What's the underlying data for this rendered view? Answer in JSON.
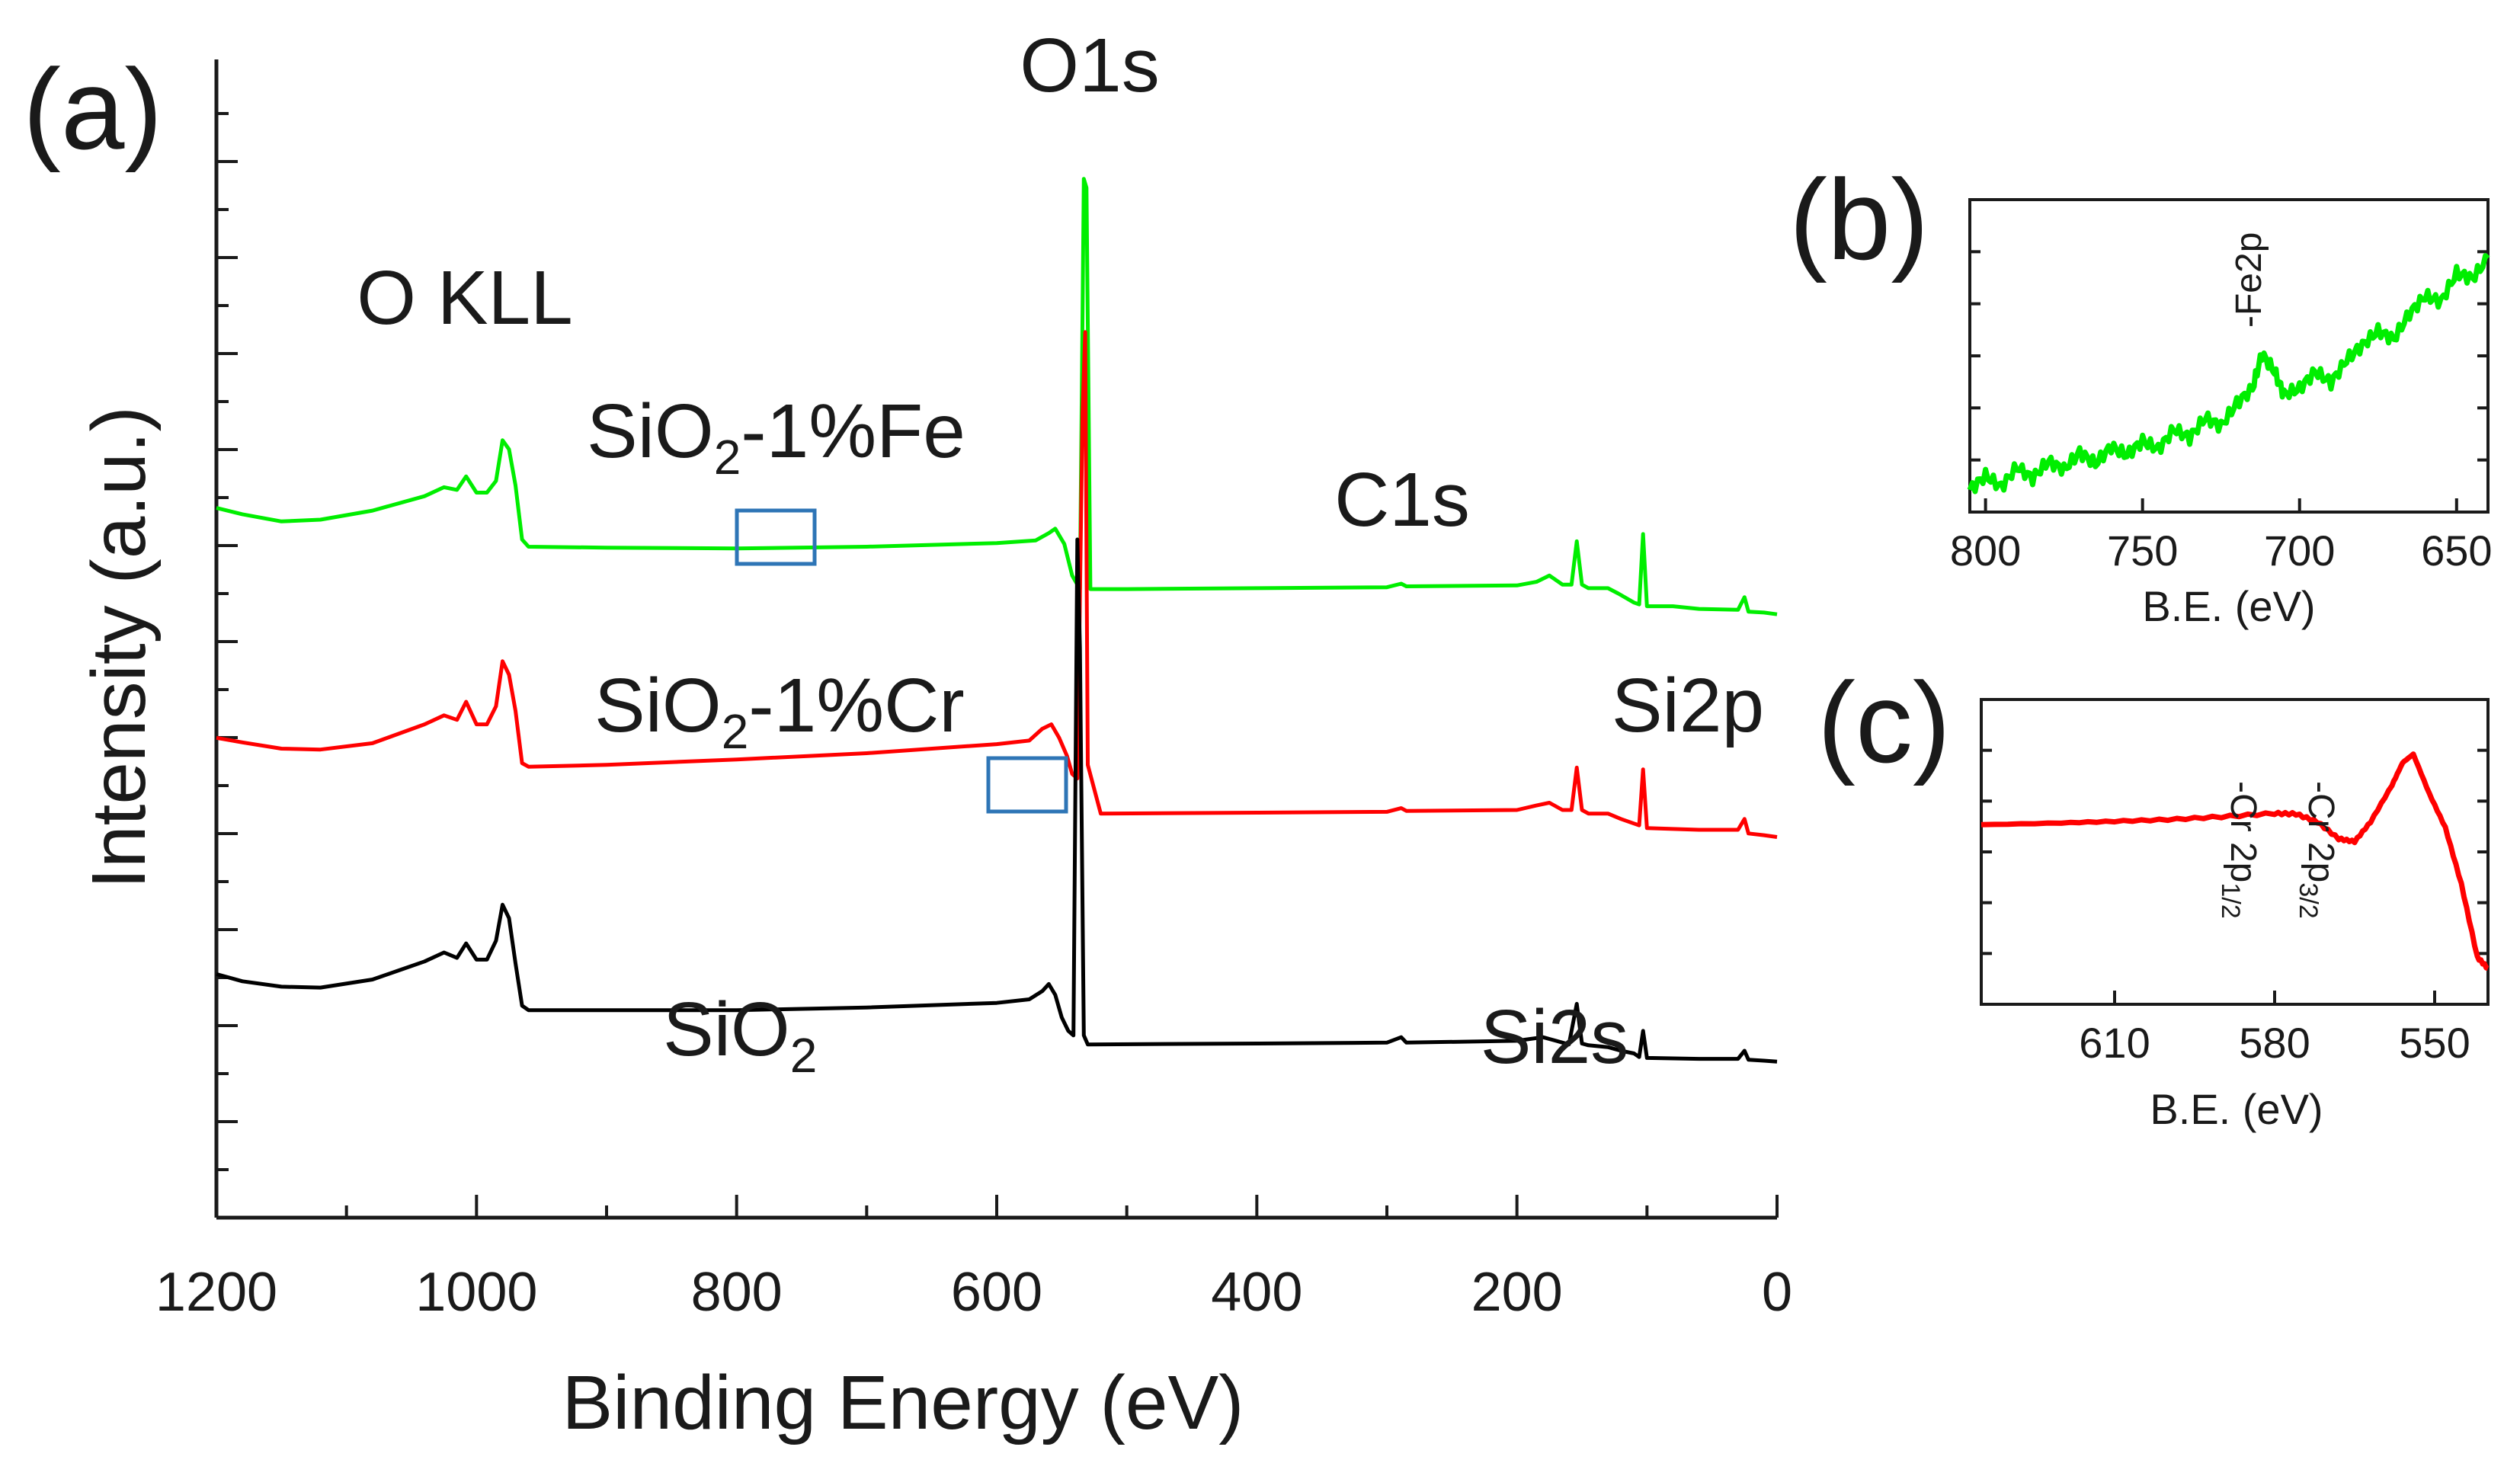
{
  "figure": {
    "panel_a_label": "(a)",
    "panel_b_label": "(b)",
    "panel_c_label": "(c)"
  },
  "chart_data": [
    {
      "id": "a",
      "type": "line",
      "title": "",
      "xlabel": "Binding Energy (eV)",
      "ylabel": "Intensity (a.u.)",
      "xlim": [
        1200,
        0
      ],
      "xticks": [
        "1200",
        "1000",
        "800",
        "600",
        "400",
        "200",
        "0"
      ],
      "ylim": [
        0,
        120
      ],
      "grid": false,
      "colors": {
        "SiO2-1%Fe": "#00ee00",
        "SiO2-1%Cr": "#ff0000",
        "SiO2": "#000000"
      },
      "peak_labels": [
        {
          "text": "O1s",
          "x": 530
        },
        {
          "text": "O KLL",
          "x": 1000
        },
        {
          "text": "C1s",
          "x": 285
        },
        {
          "text": "Si2p",
          "x": 103
        },
        {
          "text": "Si2s",
          "x": 154
        }
      ],
      "series_labels": {
        "fe": {
          "prefix": "SiO",
          "sub": "2",
          "suffix": "-1%Fe"
        },
        "cr": {
          "prefix": "SiO",
          "sub": "2",
          "suffix": "-1%Cr"
        },
        "si": {
          "prefix": "SiO",
          "sub": "2",
          "suffix": ""
        }
      },
      "highlight_boxes": [
        {
          "series": "SiO2-1%Fe",
          "x_range": [
            800,
            725
          ]
        },
        {
          "series": "SiO2-1%Cr",
          "x_range": [
            600,
            525
          ]
        }
      ],
      "series": [
        {
          "name": "SiO2-1%Fe",
          "color": "#00ee00",
          "points": [
            [
              1200,
              75.5
            ],
            [
              1180,
              74.8
            ],
            [
              1150,
              74
            ],
            [
              1120,
              74.2
            ],
            [
              1080,
              75.2
            ],
            [
              1040,
              76.8
            ],
            [
              1025,
              77.8
            ],
            [
              1015,
              77.5
            ],
            [
              1008,
              79
            ],
            [
              1000,
              77.2
            ],
            [
              992,
              77.2
            ],
            [
              985,
              78.5
            ],
            [
              980,
              83
            ],
            [
              975,
              82
            ],
            [
              970,
              78
            ],
            [
              965,
              72
            ],
            [
              960,
              71.2
            ],
            [
              900,
              71.1
            ],
            [
              800,
              71
            ],
            [
              700,
              71.2
            ],
            [
              600,
              71.6
            ],
            [
              570,
              71.9
            ],
            [
              560,
              72.7
            ],
            [
              555,
              73.2
            ],
            [
              548,
              71.5
            ],
            [
              542,
              68
            ],
            [
              536,
              66.5
            ],
            [
              533,
              112
            ],
            [
              531,
              111
            ],
            [
              528,
              66.5
            ],
            [
              500,
              66.5
            ],
            [
              400,
              66.6
            ],
            [
              300,
              66.7
            ],
            [
              289,
              67.1
            ],
            [
              285,
              66.8
            ],
            [
              200,
              66.9
            ],
            [
              185,
              67.3
            ],
            [
              175,
              68
            ],
            [
              165,
              67
            ],
            [
              158,
              67
            ],
            [
              154,
              71.8
            ],
            [
              150,
              67
            ],
            [
              145,
              66.6
            ],
            [
              130,
              66.6
            ],
            [
              122,
              66
            ],
            [
              110,
              65
            ],
            [
              106,
              64.8
            ],
            [
              103,
              72.6
            ],
            [
              100,
              64.6
            ],
            [
              80,
              64.6
            ],
            [
              60,
              64.3
            ],
            [
              30,
              64.2
            ],
            [
              25,
              65.6
            ],
            [
              22,
              64
            ],
            [
              10,
              63.9
            ],
            [
              0,
              63.7
            ]
          ]
        },
        {
          "name": "SiO2-1%Cr",
          "color": "#ff0000",
          "points": [
            [
              1200,
              50
            ],
            [
              1180,
              49.5
            ],
            [
              1150,
              48.8
            ],
            [
              1120,
              48.7
            ],
            [
              1080,
              49.4
            ],
            [
              1040,
              51.5
            ],
            [
              1025,
              52.5
            ],
            [
              1015,
              52
            ],
            [
              1008,
              54
            ],
            [
              1000,
              51.5
            ],
            [
              992,
              51.5
            ],
            [
              985,
              53.5
            ],
            [
              980,
              58.5
            ],
            [
              975,
              57
            ],
            [
              970,
              53
            ],
            [
              965,
              47.2
            ],
            [
              960,
              46.8
            ],
            [
              900,
              47
            ],
            [
              800,
              47.6
            ],
            [
              700,
              48.3
            ],
            [
              600,
              49.3
            ],
            [
              575,
              49.7
            ],
            [
              565,
              51
            ],
            [
              558,
              51.5
            ],
            [
              552,
              50
            ],
            [
              546,
              48
            ],
            [
              542,
              46
            ],
            [
              538,
              45.5
            ],
            [
              534,
              86
            ],
            [
              532,
              95
            ],
            [
              530,
              47
            ],
            [
              520,
              41.6
            ],
            [
              400,
              41.7
            ],
            [
              300,
              41.8
            ],
            [
              289,
              42.2
            ],
            [
              285,
              41.9
            ],
            [
              200,
              42
            ],
            [
              185,
              42.5
            ],
            [
              175,
              42.8
            ],
            [
              165,
              42
            ],
            [
              158,
              42
            ],
            [
              154,
              46.7
            ],
            [
              150,
              42
            ],
            [
              145,
              41.6
            ],
            [
              130,
              41.6
            ],
            [
              120,
              41
            ],
            [
              110,
              40.5
            ],
            [
              106,
              40.3
            ],
            [
              103,
              46.5
            ],
            [
              100,
              40
            ],
            [
              60,
              39.8
            ],
            [
              30,
              39.8
            ],
            [
              25,
              41
            ],
            [
              22,
              39.4
            ],
            [
              10,
              39.2
            ],
            [
              0,
              39
            ]
          ]
        },
        {
          "name": "SiO2",
          "color": "#000000",
          "points": [
            [
              1200,
              23.8
            ],
            [
              1180,
              23
            ],
            [
              1150,
              22.4
            ],
            [
              1120,
              22.3
            ],
            [
              1080,
              23.2
            ],
            [
              1040,
              25.2
            ],
            [
              1025,
              26.2
            ],
            [
              1015,
              25.6
            ],
            [
              1008,
              27.2
            ],
            [
              1000,
              25.4
            ],
            [
              992,
              25.4
            ],
            [
              985,
              27.5
            ],
            [
              980,
              31.5
            ],
            [
              975,
              30
            ],
            [
              970,
              25
            ],
            [
              965,
              20.3
            ],
            [
              960,
              19.8
            ],
            [
              900,
              19.8
            ],
            [
              800,
              19.8
            ],
            [
              700,
              20.1
            ],
            [
              600,
              20.6
            ],
            [
              575,
              21
            ],
            [
              565,
              21.9
            ],
            [
              560,
              22.7
            ],
            [
              555,
              21.5
            ],
            [
              550,
              19
            ],
            [
              545,
              17.5
            ],
            [
              541,
              17
            ],
            [
              538,
              72
            ],
            [
              536,
              60
            ],
            [
              533,
              17
            ],
            [
              530,
              16
            ],
            [
              400,
              16.1
            ],
            [
              300,
              16.2
            ],
            [
              289,
              16.8
            ],
            [
              285,
              16.2
            ],
            [
              200,
              16.4
            ],
            [
              180,
              16.8
            ],
            [
              170,
              16.4
            ],
            [
              160,
              16
            ],
            [
              154,
              20.5
            ],
            [
              150,
              16.1
            ],
            [
              145,
              15.9
            ],
            [
              130,
              15.7
            ],
            [
              120,
              15.3
            ],
            [
              110,
              15
            ],
            [
              106,
              14.6
            ],
            [
              103,
              17.5
            ],
            [
              100,
              14.5
            ],
            [
              60,
              14.4
            ],
            [
              30,
              14.4
            ],
            [
              25,
              15.3
            ],
            [
              22,
              14.3
            ],
            [
              10,
              14.2
            ],
            [
              0,
              14.1
            ]
          ]
        }
      ]
    },
    {
      "id": "b",
      "type": "line",
      "title": "",
      "xlabel": "B.E. (eV)",
      "ylabel": "",
      "xlim": [
        805,
        640
      ],
      "xticks": [
        "800",
        "750",
        "700",
        "650"
      ],
      "ylim": [
        0,
        100
      ],
      "grid": false,
      "annotations": [
        {
          "text": "-Fe2p",
          "x": 712
        }
      ],
      "series": [
        {
          "name": "SiO2-1%Fe",
          "color": "#00ee00",
          "points": [
            [
              805,
              5
            ],
            [
              800,
              10
            ],
            [
              795,
              6
            ],
            [
              790,
              13
            ],
            [
              785,
              9
            ],
            [
              780,
              15
            ],
            [
              775,
              12
            ],
            [
              770,
              18
            ],
            [
              765,
              14
            ],
            [
              760,
              20
            ],
            [
              755,
              17
            ],
            [
              750,
              22
            ],
            [
              745,
              19
            ],
            [
              740,
              26
            ],
            [
              735,
              23
            ],
            [
              730,
              30
            ],
            [
              725,
              27
            ],
            [
              720,
              35
            ],
            [
              715,
              40
            ],
            [
              712,
              52
            ],
            [
              708,
              46
            ],
            [
              705,
              38
            ],
            [
              700,
              40
            ],
            [
              695,
              46
            ],
            [
              690,
              42
            ],
            [
              685,
              50
            ],
            [
              680,
              55
            ],
            [
              675,
              60
            ],
            [
              670,
              57
            ],
            [
              665,
              66
            ],
            [
              660,
              72
            ],
            [
              655,
              70
            ],
            [
              650,
              80
            ],
            [
              645,
              78
            ],
            [
              640,
              85
            ]
          ]
        }
      ]
    },
    {
      "id": "c",
      "type": "line",
      "title": "",
      "xlabel": "B.E. (eV)",
      "ylabel": "",
      "xlim": [
        635,
        540
      ],
      "xticks": [
        "610",
        "580",
        "550"
      ],
      "ylim": [
        0,
        100
      ],
      "grid": false,
      "annotations": [
        {
          "text": "-Cr 2p",
          "sub": "3/2",
          "x": 576
        },
        {
          "text": "-Cr 2p",
          "sub": "1/2",
          "x": 586
        }
      ],
      "series": [
        {
          "name": "SiO2-1%Cr",
          "color": "#ff0000",
          "points": [
            [
              635,
              61
            ],
            [
              620,
              61.6
            ],
            [
              610,
              62.2
            ],
            [
              600,
              62.8
            ],
            [
              590,
              63.8
            ],
            [
              580,
              65
            ],
            [
              576,
              64.8
            ],
            [
              572,
              62
            ],
            [
              568,
              56
            ],
            [
              565,
              55
            ],
            [
              562,
              62
            ],
            [
              558,
              75
            ],
            [
              556,
              83
            ],
            [
              554,
              86
            ],
            [
              551,
              72
            ],
            [
              548,
              60
            ],
            [
              545,
              40
            ],
            [
              542,
              14
            ],
            [
              540,
              10
            ]
          ]
        }
      ]
    }
  ]
}
